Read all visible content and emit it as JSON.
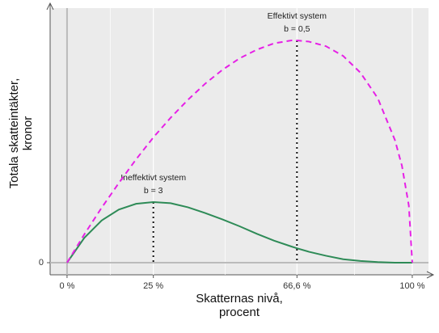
{
  "chart_data": {
    "type": "line",
    "x": [
      0,
      5,
      10,
      15,
      20,
      25,
      30,
      35,
      40,
      45,
      50,
      55,
      60,
      65,
      66.6,
      70,
      75,
      80,
      85,
      90,
      95,
      97,
      99,
      100
    ],
    "series": [
      {
        "name": "Ineffektivt system",
        "color": "#2e8b57",
        "dash": false,
        "values": [
          0,
          0.043,
          0.073,
          0.092,
          0.102,
          0.105,
          0.103,
          0.096,
          0.086,
          0.075,
          0.063,
          0.05,
          0.038,
          0.028,
          0.025,
          0.019,
          0.012,
          0.006,
          0.003,
          0.001,
          0,
          0,
          0,
          0
        ]
      },
      {
        "name": "Effektivt system",
        "color": "#e620e6",
        "dash": true,
        "values": [
          0,
          0.049,
          0.095,
          0.138,
          0.179,
          0.217,
          0.251,
          0.282,
          0.31,
          0.334,
          0.354,
          0.369,
          0.38,
          0.385,
          0.385,
          0.383,
          0.375,
          0.358,
          0.329,
          0.285,
          0.212,
          0.168,
          0.099,
          0
        ]
      }
    ],
    "annotations": [
      {
        "x": 25,
        "series": 0,
        "lines": [
          "Ineffektivt system",
          "b = 3"
        ]
      },
      {
        "x": 66.6,
        "series": 1,
        "lines": [
          "Effektivt system",
          "b = 0,5"
        ]
      }
    ],
    "xlim": [
      -4.9,
      104.7
    ],
    "ylim": [
      -0.021,
      0.441
    ],
    "xticks": [
      {
        "value": 0,
        "label": "0 %"
      },
      {
        "value": 25,
        "label": "25 %"
      },
      {
        "value": 66.6,
        "label": "66,6 %"
      },
      {
        "value": 100,
        "label": "100 %"
      }
    ],
    "yticks": [
      0
    ],
    "xlabel": [
      "Skatternas nivå,",
      "procent"
    ],
    "ylabel": [
      "Totala skatteintäkter,",
      "kronor"
    ],
    "grid": true
  }
}
